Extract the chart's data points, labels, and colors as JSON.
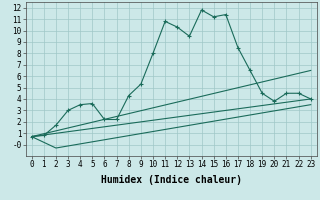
{
  "xlabel": "Humidex (Indice chaleur)",
  "bg_color": "#cce8e8",
  "line_color": "#1a6b5a",
  "xlim": [
    -0.5,
    23.5
  ],
  "ylim": [
    -1.0,
    12.5
  ],
  "xticks": [
    0,
    1,
    2,
    3,
    4,
    5,
    6,
    7,
    8,
    9,
    10,
    11,
    12,
    13,
    14,
    15,
    16,
    17,
    18,
    19,
    20,
    21,
    22,
    23
  ],
  "yticks": [
    0,
    1,
    2,
    3,
    4,
    5,
    6,
    7,
    8,
    9,
    10,
    11,
    12
  ],
  "series1_x": [
    0,
    1,
    2,
    3,
    4,
    5,
    6,
    7,
    8,
    9,
    10,
    11,
    12,
    13,
    14,
    15,
    16,
    17,
    18,
    19,
    20,
    21,
    22,
    23
  ],
  "series1_y": [
    0.7,
    0.8,
    1.7,
    3.0,
    3.5,
    3.6,
    2.2,
    2.2,
    4.3,
    5.3,
    8.0,
    10.8,
    10.3,
    9.5,
    11.8,
    11.2,
    11.4,
    8.5,
    6.5,
    4.5,
    3.8,
    4.5,
    4.5,
    4.0
  ],
  "series2_x": [
    0,
    23
  ],
  "series2_y": [
    0.7,
    6.5
  ],
  "series3_x": [
    0,
    23
  ],
  "series3_y": [
    0.7,
    4.0
  ],
  "series4_x": [
    0,
    2,
    23
  ],
  "series4_y": [
    0.7,
    -0.3,
    3.5
  ]
}
